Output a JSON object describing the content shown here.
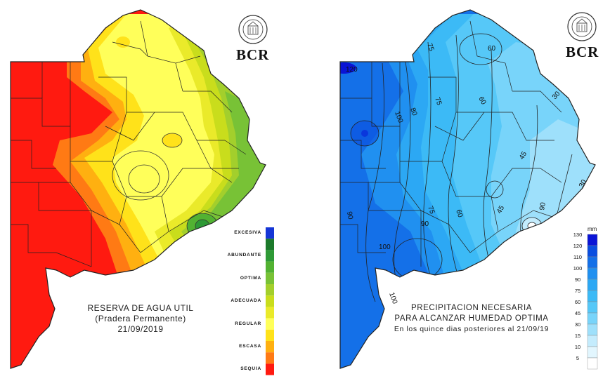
{
  "left_map": {
    "caption_line1": "RESERVA DE AGUA UTIL",
    "caption_line2": "(Pradera Permanente)",
    "caption_line3": "21/09/2019",
    "brand": "BCR",
    "legend": [
      {
        "label": "EXCESIVA",
        "color": "#1536d6"
      },
      {
        "label": "",
        "color": "#1c7a2b"
      },
      {
        "label": "ABUNDANTE",
        "color": "#2e9a36"
      },
      {
        "label": "",
        "color": "#52b232"
      },
      {
        "label": "OPTIMA",
        "color": "#78c236"
      },
      {
        "label": "",
        "color": "#a3cf2c"
      },
      {
        "label": "ADECUADA",
        "color": "#c9dd1c"
      },
      {
        "label": "",
        "color": "#eaea2a"
      },
      {
        "label": "REGULAR",
        "color": "#ffff5a"
      },
      {
        "label": "",
        "color": "#ffe21a"
      },
      {
        "label": "ESCASA",
        "color": "#ffb010"
      },
      {
        "label": "",
        "color": "#ff7a14"
      },
      {
        "label": "SEQUIA",
        "color": "#ff1a10"
      }
    ]
  },
  "right_map": {
    "caption_line1": "PRECIPITACION NECESARIA",
    "caption_line2": "PARA ALCANZAR HUMEDAD OPTIMA",
    "caption_line3": "En los quince dias posteriores al 21/09/19",
    "brand": "BCR",
    "unit": "mm",
    "scale": [
      {
        "value": "130",
        "color": "#0a14d6"
      },
      {
        "value": "120",
        "color": "#0a4ee0"
      },
      {
        "value": "110",
        "color": "#1470e8"
      },
      {
        "value": "100",
        "color": "#2090f0"
      },
      {
        "value": "90",
        "color": "#2ca8f4"
      },
      {
        "value": "75",
        "color": "#3cbaf6"
      },
      {
        "value": "60",
        "color": "#56c8f8"
      },
      {
        "value": "45",
        "color": "#78d4fa"
      },
      {
        "value": "30",
        "color": "#9ee0fb"
      },
      {
        "value": "15",
        "color": "#c4ecfd"
      },
      {
        "value": "10",
        "color": "#e2f6fe"
      },
      {
        "value": "5",
        "color": "#ffffff"
      }
    ],
    "contour_labels": [
      "120",
      "100",
      "100",
      "90",
      "90",
      "80",
      "75",
      "75",
      "75",
      "60",
      "60",
      "60",
      "45",
      "45",
      "30",
      "30",
      "90",
      "100"
    ]
  }
}
